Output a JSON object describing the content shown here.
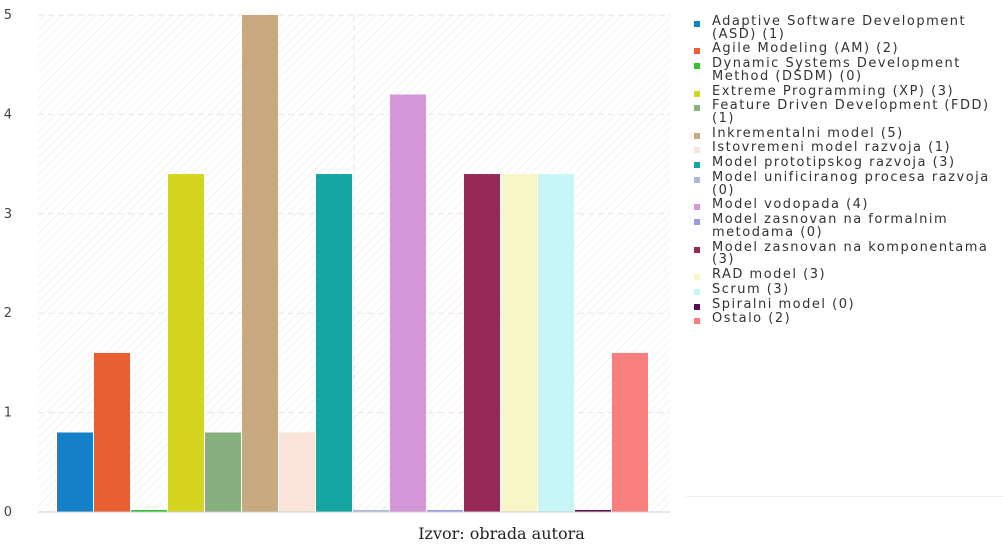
{
  "chart_data": {
    "type": "bar",
    "ylim": [
      0,
      5
    ],
    "yticks": [
      0,
      1,
      2,
      3,
      4,
      5
    ],
    "grid": true,
    "legend_position": "right",
    "series": [
      {
        "label": "Adaptive Software Development (ASD) (1)",
        "value": 0.8,
        "color": "#1380c8"
      },
      {
        "label": "Agile Modeling (AM) (2)",
        "value": 1.6,
        "color": "#e85f32"
      },
      {
        "label": "Dynamic Systems Development Method (DSDM) (0)",
        "value": 0.0,
        "color": "#2ec234"
      },
      {
        "label": "Extreme Programming (XP) (3)",
        "value": 3.4,
        "color": "#d4d421"
      },
      {
        "label": "Feature Driven Development (FDD) (1)",
        "value": 0.8,
        "color": "#88b07f"
      },
      {
        "label": "Inkrementalni model (5)",
        "value": 5.0,
        "color": "#c8a980"
      },
      {
        "label": "Istovremeni model razvoja (1)",
        "value": 0.8,
        "color": "#fae3d8"
      },
      {
        "label": "Model prototipskog razvoja (3)",
        "value": 3.4,
        "color": "#16a6a2"
      },
      {
        "label": "Model unificiranog procesa razvoja (0)",
        "value": 0.0,
        "color": "#a7bbd8"
      },
      {
        "label": "Model vodopada (4)",
        "value": 4.2,
        "color": "#d497d8"
      },
      {
        "label": "Model zasnovan na formalnim metodama (0)",
        "value": 0.0,
        "color": "#9c98ec"
      },
      {
        "label": "Model zasnovan na komponentama (3)",
        "value": 3.4,
        "color": "#962956"
      },
      {
        "label": "RAD model (3)",
        "value": 3.4,
        "color": "#f8f6c7"
      },
      {
        "label": "Scrum (3)",
        "value": 3.4,
        "color": "#c6f6f6"
      },
      {
        "label": "Spiralni model (0)",
        "value": 0.0,
        "color": "#5a0d55"
      },
      {
        "label": "Ostalo (2)",
        "value": 1.6,
        "color": "#f97e7e"
      }
    ]
  },
  "source_text": "Izvor: obrada autora"
}
